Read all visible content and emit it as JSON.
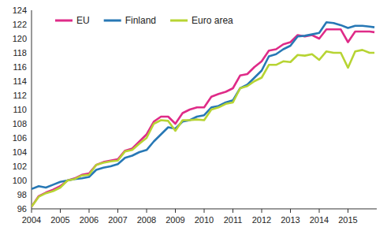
{
  "chart_data": {
    "type": "line",
    "x": [
      2004,
      2004.25,
      2004.5,
      2004.75,
      2005,
      2005.25,
      2005.5,
      2005.75,
      2006,
      2006.25,
      2006.5,
      2006.75,
      2007,
      2007.25,
      2007.5,
      2007.75,
      2008,
      2008.25,
      2008.5,
      2008.75,
      2009,
      2009.25,
      2009.5,
      2009.75,
      2010,
      2010.25,
      2010.5,
      2010.75,
      2011,
      2011.25,
      2011.5,
      2011.75,
      2012,
      2012.25,
      2012.5,
      2012.75,
      2013,
      2013.25,
      2013.5,
      2013.75,
      2014,
      2014.25,
      2014.5,
      2014.75,
      2015,
      2015.25,
      2015.5,
      2015.75,
      2015.92
    ],
    "series": [
      {
        "name": "EU",
        "color": "#df2b88",
        "values": [
          96.3,
          97.8,
          98.3,
          98.7,
          99.2,
          100.0,
          100.3,
          100.8,
          101.0,
          102.2,
          102.6,
          102.8,
          103.0,
          104.2,
          104.5,
          105.5,
          106.5,
          108.3,
          109.0,
          109.0,
          108.0,
          109.5,
          110.0,
          110.3,
          110.3,
          111.8,
          112.2,
          112.5,
          113.0,
          114.8,
          115.0,
          116.0,
          116.8,
          118.3,
          118.5,
          119.2,
          119.5,
          120.5,
          120.3,
          120.5,
          120.0,
          121.3,
          121.3,
          121.3,
          119.5,
          121.0,
          121.0,
          121.0,
          120.9
        ]
      },
      {
        "name": "Finland",
        "color": "#2778b5",
        "values": [
          98.8,
          99.2,
          99.0,
          99.4,
          99.8,
          100.0,
          100.2,
          100.3,
          100.5,
          101.5,
          101.8,
          102.0,
          102.3,
          103.2,
          103.5,
          104.0,
          104.3,
          105.5,
          106.5,
          107.5,
          107.3,
          108.3,
          108.5,
          109.0,
          109.2,
          110.3,
          110.5,
          111.0,
          111.3,
          113.0,
          113.5,
          114.5,
          115.5,
          117.5,
          117.8,
          118.5,
          119.0,
          120.3,
          120.4,
          120.6,
          120.8,
          122.3,
          122.2,
          121.9,
          121.5,
          121.8,
          121.8,
          121.7,
          121.6
        ]
      },
      {
        "name": "Euro area",
        "color": "#b7d433",
        "values": [
          96.3,
          97.7,
          98.2,
          98.5,
          99.0,
          100.0,
          100.2,
          100.7,
          100.8,
          102.2,
          102.5,
          102.7,
          102.8,
          104.1,
          104.3,
          105.2,
          106.0,
          108.0,
          108.5,
          108.4,
          107.0,
          108.5,
          108.5,
          108.6,
          108.5,
          110.0,
          110.3,
          110.8,
          111.0,
          113.0,
          113.3,
          114.0,
          114.5,
          116.3,
          116.3,
          116.8,
          116.7,
          117.7,
          117.6,
          117.8,
          117.0,
          118.2,
          118.0,
          118.0,
          115.9,
          118.2,
          118.4,
          118.0,
          118.0
        ]
      }
    ],
    "xlim": [
      2004,
      2016
    ],
    "xticks": [
      2004,
      2005,
      2006,
      2007,
      2008,
      2009,
      2010,
      2011,
      2012,
      2013,
      2014,
      2015
    ],
    "ylim": [
      96,
      124
    ],
    "yticks": [
      96,
      98,
      100,
      102,
      104,
      106,
      108,
      110,
      112,
      114,
      116,
      118,
      120,
      122,
      124
    ],
    "grid": false,
    "legend": "top-left"
  }
}
